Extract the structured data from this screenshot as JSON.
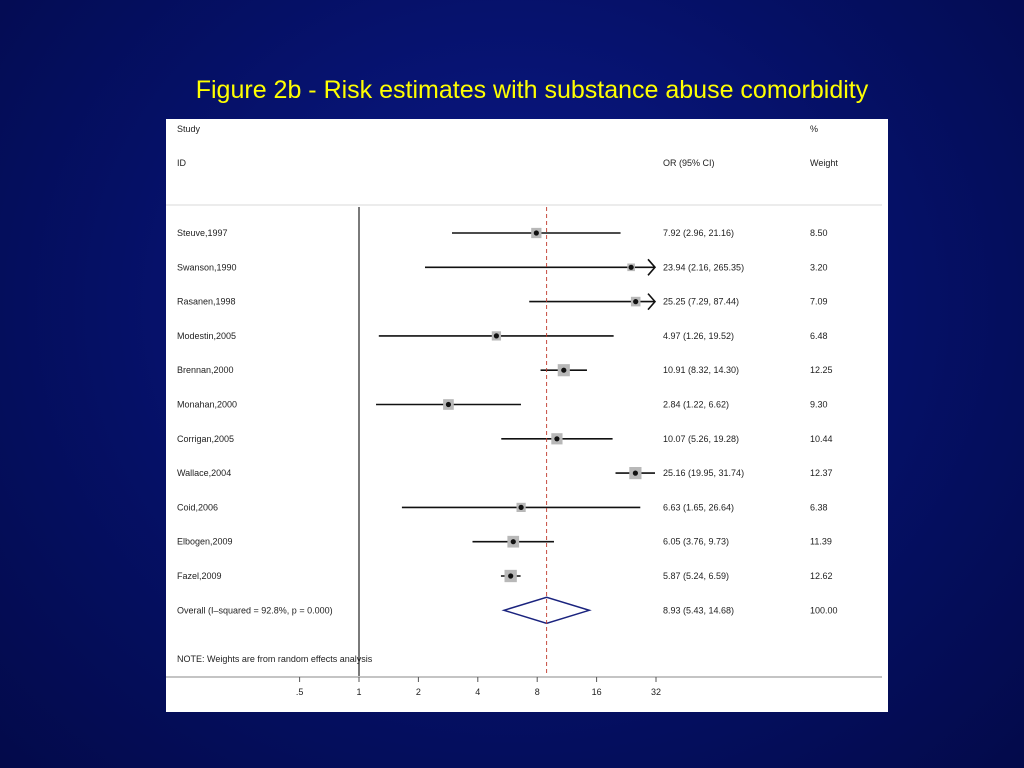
{
  "slide": {
    "title": "Figure 2b - Risk estimates with substance abuse comorbidity"
  },
  "chart_data": {
    "type": "forest",
    "headers": {
      "study_top": "Study",
      "study_bottom": "ID",
      "or_label": "OR (95% CI)",
      "weight_top": "%",
      "weight_bottom": "Weight"
    },
    "x_scale": "log",
    "x_ticks": [
      {
        "value": 0.5,
        "label": ".5"
      },
      {
        "value": 1,
        "label": "1"
      },
      {
        "value": 2,
        "label": "2"
      },
      {
        "value": 4,
        "label": "4"
      },
      {
        "value": 8,
        "label": "8"
      },
      {
        "value": 16,
        "label": "16"
      },
      {
        "value": 32,
        "label": "32"
      }
    ],
    "null_line": 1,
    "studies": [
      {
        "label": "Steuve,1997",
        "or": 7.92,
        "lo": 2.96,
        "hi": 21.16,
        "ci_text": "7.92 (2.96, 21.16)",
        "weight": "8.50",
        "arrow": false
      },
      {
        "label": "Swanson,1990",
        "or": 23.94,
        "lo": 2.16,
        "hi": 265.35,
        "ci_text": "23.94 (2.16, 265.35)",
        "weight": "3.20",
        "arrow": true
      },
      {
        "label": "Rasanen,1998",
        "or": 25.25,
        "lo": 7.29,
        "hi": 87.44,
        "ci_text": "25.25 (7.29, 87.44)",
        "weight": "7.09",
        "arrow": true
      },
      {
        "label": "Modestin,2005",
        "or": 4.97,
        "lo": 1.26,
        "hi": 19.52,
        "ci_text": "4.97 (1.26, 19.52)",
        "weight": "6.48",
        "arrow": false
      },
      {
        "label": "Brennan,2000",
        "or": 10.91,
        "lo": 8.32,
        "hi": 14.3,
        "ci_text": "10.91 (8.32, 14.30)",
        "weight": "12.25",
        "arrow": false
      },
      {
        "label": "Monahan,2000",
        "or": 2.84,
        "lo": 1.22,
        "hi": 6.62,
        "ci_text": "2.84 (1.22, 6.62)",
        "weight": "9.30",
        "arrow": false
      },
      {
        "label": "Corrigan,2005",
        "or": 10.07,
        "lo": 5.26,
        "hi": 19.28,
        "ci_text": "10.07 (5.26, 19.28)",
        "weight": "10.44",
        "arrow": false
      },
      {
        "label": "Wallace,2004",
        "or": 25.16,
        "lo": 19.95,
        "hi": 31.74,
        "ci_text": "25.16 (19.95, 31.74)",
        "weight": "12.37",
        "arrow": false
      },
      {
        "label": "Coid,2006",
        "or": 6.63,
        "lo": 1.65,
        "hi": 26.64,
        "ci_text": "6.63 (1.65, 26.64)",
        "weight": "6.38",
        "arrow": false
      },
      {
        "label": "Elbogen,2009",
        "or": 6.05,
        "lo": 3.76,
        "hi": 9.73,
        "ci_text": "6.05 (3.76, 9.73)",
        "weight": "11.39",
        "arrow": false
      },
      {
        "label": "Fazel,2009",
        "or": 5.87,
        "lo": 5.24,
        "hi": 6.59,
        "ci_text": "5.87 (5.24, 6.59)",
        "weight": "12.62",
        "arrow": false
      }
    ],
    "overall": {
      "label": "Overall  (I–squared = 92.8%, p = 0.000)",
      "or": 8.93,
      "lo": 5.43,
      "hi": 14.68,
      "ci_text": "8.93 (5.43, 14.68)",
      "weight": "100.00"
    },
    "note": "NOTE: Weights are from random effects analysis"
  }
}
